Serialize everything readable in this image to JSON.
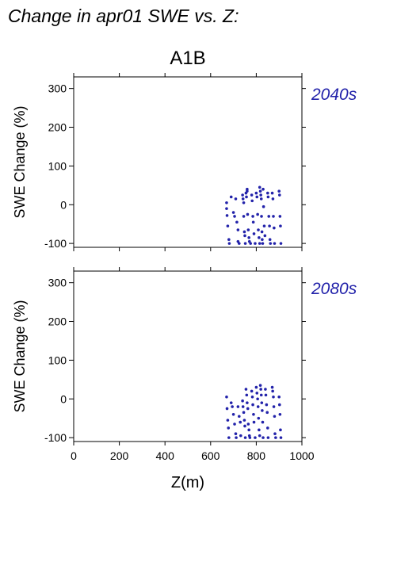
{
  "header": {
    "title": "Change in apr01 SWE vs. Z:",
    "scenario": "A1B"
  },
  "colors": {
    "points": "#2222aa",
    "period_label": "#2222aa",
    "axis": "#000000"
  },
  "chart_data": [
    {
      "type": "scatter",
      "period": "2040s",
      "xlabel": "Z(m)",
      "ylabel": "SWE Change (%)",
      "xlim": [
        0,
        1000
      ],
      "ylim": [
        -110,
        330
      ],
      "yticks": [
        -100,
        0,
        100,
        200,
        300
      ],
      "xticks": [
        0,
        200,
        400,
        600,
        800,
        1000
      ],
      "grid": false,
      "series": [
        {
          "points": [
            [
              670,
              5
            ],
            [
              670,
              -10
            ],
            [
              672,
              -28
            ],
            [
              675,
              -55
            ],
            [
              680,
              -90
            ],
            [
              682,
              -100
            ],
            [
              690,
              20
            ],
            [
              700,
              -20
            ],
            [
              705,
              -30
            ],
            [
              710,
              15
            ],
            [
              715,
              -45
            ],
            [
              720,
              -65
            ],
            [
              720,
              -95
            ],
            [
              725,
              -100
            ],
            [
              740,
              25
            ],
            [
              742,
              15
            ],
            [
              745,
              5
            ],
            [
              745,
              -30
            ],
            [
              748,
              -70
            ],
            [
              750,
              -80
            ],
            [
              752,
              -100
            ],
            [
              755,
              30
            ],
            [
              757,
              20
            ],
            [
              760,
              40
            ],
            [
              760,
              35
            ],
            [
              762,
              -25
            ],
            [
              765,
              -65
            ],
            [
              768,
              -85
            ],
            [
              770,
              -95
            ],
            [
              775,
              -100
            ],
            [
              780,
              25
            ],
            [
              782,
              10
            ],
            [
              785,
              -30
            ],
            [
              787,
              -45
            ],
            [
              790,
              -75
            ],
            [
              795,
              -100
            ],
            [
              800,
              30
            ],
            [
              803,
              20
            ],
            [
              806,
              -25
            ],
            [
              809,
              -65
            ],
            [
              812,
              -85
            ],
            [
              815,
              45
            ],
            [
              815,
              -100
            ],
            [
              818,
              35
            ],
            [
              820,
              25
            ],
            [
              822,
              15
            ],
            [
              823,
              -30
            ],
            [
              825,
              -70
            ],
            [
              826,
              -90
            ],
            [
              828,
              -100
            ],
            [
              830,
              40
            ],
            [
              832,
              -5
            ],
            [
              835,
              -55
            ],
            [
              838,
              -80
            ],
            [
              850,
              30
            ],
            [
              852,
              20
            ],
            [
              855,
              -30
            ],
            [
              858,
              -55
            ],
            [
              860,
              -90
            ],
            [
              862,
              -100
            ],
            [
              870,
              30
            ],
            [
              873,
              15
            ],
            [
              875,
              -30
            ],
            [
              878,
              -60
            ],
            [
              880,
              -100
            ],
            [
              900,
              35
            ],
            [
              902,
              25
            ],
            [
              904,
              -30
            ],
            [
              906,
              -55
            ],
            [
              908,
              -100
            ]
          ]
        }
      ]
    },
    {
      "type": "scatter",
      "period": "2080s",
      "xlabel": "Z(m)",
      "ylabel": "SWE Change (%)",
      "xlim": [
        0,
        1000
      ],
      "ylim": [
        -110,
        330
      ],
      "yticks": [
        -100,
        0,
        100,
        200,
        300
      ],
      "xticks": [
        0,
        200,
        400,
        600,
        800,
        1000
      ],
      "grid": false,
      "series": [
        {
          "points": [
            [
              670,
              5
            ],
            [
              672,
              -25
            ],
            [
              675,
              -55
            ],
            [
              678,
              -75
            ],
            [
              680,
              -100
            ],
            [
              690,
              -10
            ],
            [
              695,
              -20
            ],
            [
              700,
              -40
            ],
            [
              705,
              -65
            ],
            [
              710,
              -90
            ],
            [
              712,
              -100
            ],
            [
              720,
              -20
            ],
            [
              725,
              -45
            ],
            [
              730,
              -60
            ],
            [
              732,
              -95
            ],
            [
              740,
              -5
            ],
            [
              742,
              -20
            ],
            [
              745,
              -35
            ],
            [
              748,
              -55
            ],
            [
              750,
              -70
            ],
            [
              752,
              -100
            ],
            [
              755,
              25
            ],
            [
              758,
              10
            ],
            [
              760,
              -10
            ],
            [
              763,
              -25
            ],
            [
              765,
              -65
            ],
            [
              768,
              -80
            ],
            [
              770,
              -95
            ],
            [
              772,
              -100
            ],
            [
              780,
              20
            ],
            [
              783,
              5
            ],
            [
              785,
              -15
            ],
            [
              788,
              -40
            ],
            [
              790,
              -60
            ],
            [
              795,
              -100
            ],
            [
              800,
              30
            ],
            [
              803,
              15
            ],
            [
              806,
              0
            ],
            [
              808,
              -20
            ],
            [
              810,
              -50
            ],
            [
              812,
              -80
            ],
            [
              815,
              -95
            ],
            [
              818,
              35
            ],
            [
              820,
              25
            ],
            [
              822,
              10
            ],
            [
              824,
              -10
            ],
            [
              826,
              -30
            ],
            [
              828,
              -60
            ],
            [
              830,
              -100
            ],
            [
              840,
              25
            ],
            [
              842,
              10
            ],
            [
              845,
              -15
            ],
            [
              848,
              -35
            ],
            [
              850,
              -75
            ],
            [
              852,
              -100
            ],
            [
              870,
              30
            ],
            [
              872,
              20
            ],
            [
              875,
              5
            ],
            [
              877,
              -20
            ],
            [
              880,
              -45
            ],
            [
              882,
              -90
            ],
            [
              885,
              -100
            ],
            [
              900,
              5
            ],
            [
              902,
              -15
            ],
            [
              904,
              -40
            ],
            [
              906,
              -80
            ],
            [
              908,
              -100
            ]
          ]
        }
      ]
    }
  ]
}
